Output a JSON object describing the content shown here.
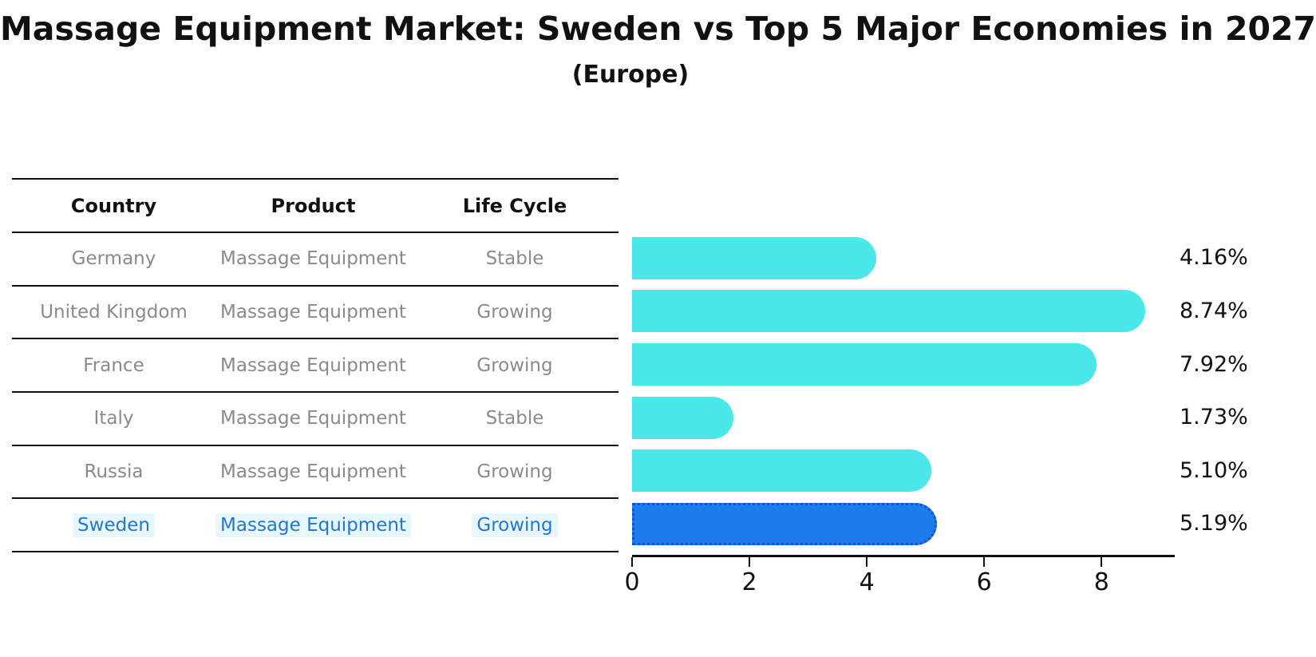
{
  "title": "Massage Equipment Market: Sweden vs Top 5 Major Economies in 2027",
  "subtitle": "(Europe)",
  "colors": {
    "bar": "#4AE8E8",
    "highlight_bar": "#1D7CEC",
    "highlight_border": "#0E55C8",
    "highlight_text": "#2277CE",
    "table_text": "#8a8a8a",
    "axis_and_lines": "#111111"
  },
  "table": {
    "headers": [
      "Country",
      "Product",
      "Life Cycle"
    ],
    "rows": [
      {
        "country": "Germany",
        "product": "Massage Equipment",
        "life_cycle": "Stable",
        "highlight": false
      },
      {
        "country": "United Kingdom",
        "product": "Massage Equipment",
        "life_cycle": "Growing",
        "highlight": false
      },
      {
        "country": "France",
        "product": "Massage Equipment",
        "life_cycle": "Growing",
        "highlight": false
      },
      {
        "country": "Italy",
        "product": "Massage Equipment",
        "life_cycle": "Stable",
        "highlight": false
      },
      {
        "country": "Russia",
        "product": "Massage Equipment",
        "life_cycle": "Growing",
        "highlight": false
      },
      {
        "country": "Sweden",
        "product": "Massage Equipment",
        "life_cycle": "Growing",
        "highlight": true
      }
    ]
  },
  "chart_data": {
    "type": "bar",
    "orientation": "horizontal",
    "title": "Massage Equipment Market: Sweden vs Top 5 Major Economies in 2027",
    "subtitle": "(Europe)",
    "categories": [
      "Germany",
      "United Kingdom",
      "France",
      "Italy",
      "Russia",
      "Sweden"
    ],
    "values": [
      4.16,
      8.74,
      7.92,
      1.73,
      5.1,
      5.19
    ],
    "value_labels": [
      "4.16%",
      "8.74%",
      "7.92%",
      "1.73%",
      "5.10%",
      "5.19%"
    ],
    "highlight_category": "Sweden",
    "xlabel": "",
    "ylabel": "",
    "xlim": [
      0,
      9.22
    ],
    "xticks": [
      0,
      2,
      4,
      6,
      8
    ],
    "grid": false,
    "legend": false
  }
}
